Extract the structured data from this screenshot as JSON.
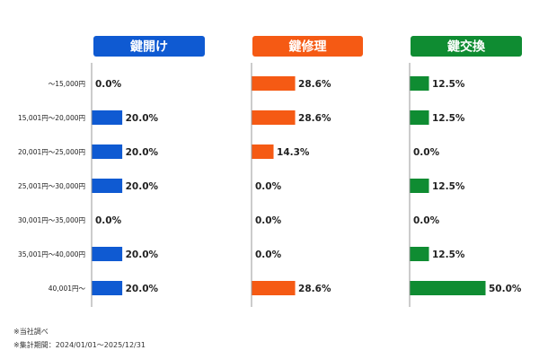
{
  "chart_data": {
    "type": "bar",
    "orientation": "horizontal",
    "categories": [
      "～15,000円",
      "15,001円～20,000円",
      "20,001円～25,000円",
      "25,001円～30,000円",
      "30,001円～35,000円",
      "35,001円～40,000円",
      "40,001円～"
    ],
    "series": [
      {
        "name": "鍵開け",
        "color": "#0f5ad2",
        "values": [
          0.0,
          20.0,
          20.0,
          20.0,
          0.0,
          20.0,
          20.0
        ],
        "labels": [
          "0.0%",
          "20.0%",
          "20.0%",
          "20.0%",
          "0.0%",
          "20.0%",
          "20.0%"
        ]
      },
      {
        "name": "鍵修理",
        "color": "#f55a14",
        "values": [
          28.6,
          28.6,
          14.3,
          0.0,
          0.0,
          0.0,
          28.6
        ],
        "labels": [
          "28.6%",
          "28.6%",
          "14.3%",
          "0.0%",
          "0.0%",
          "0.0%",
          "28.6%"
        ]
      },
      {
        "name": "鍵交換",
        "color": "#0f8c32",
        "values": [
          12.5,
          12.5,
          0.0,
          12.5,
          0.0,
          12.5,
          50.0
        ],
        "labels": [
          "12.5%",
          "12.5%",
          "0.0%",
          "12.5%",
          "0.0%",
          "12.5%",
          "50.0%"
        ]
      }
    ],
    "xlim": [
      0,
      50
    ],
    "grid": false,
    "legend": "none"
  },
  "notes": [
    "※当社調べ",
    "※集計期間：2024/01/01～2025/12/31"
  ]
}
